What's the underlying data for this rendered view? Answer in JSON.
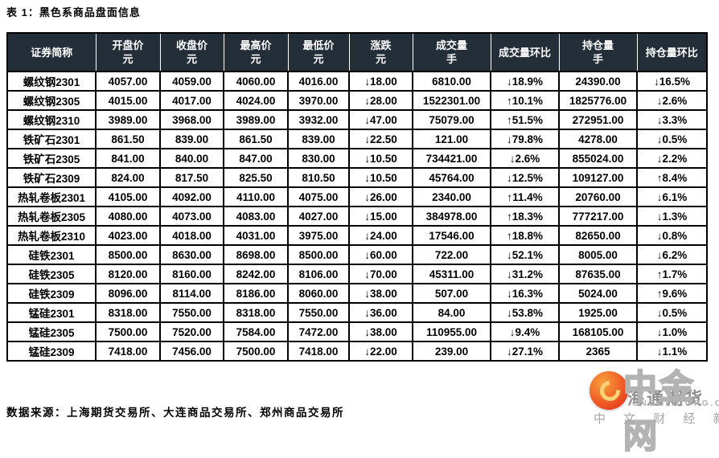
{
  "page": {
    "title": "表 1：黑色系商品盘面信息",
    "source_note": "数据来源：上海期货交易所、大连商品交易所、郑州商品交易所"
  },
  "colors": {
    "header_bg": "#242E38",
    "up_red": "#FE0000",
    "down_green": "#00D400",
    "border_black": "#000000"
  },
  "icons": {
    "up": "↑",
    "down": "↓",
    "logo": "cngold-flame-icon"
  },
  "table": {
    "columns": [
      {
        "label": "证券简称",
        "unit": ""
      },
      {
        "label": "开盘价",
        "unit": "元"
      },
      {
        "label": "收盘价",
        "unit": "元"
      },
      {
        "label": "最高价",
        "unit": "元"
      },
      {
        "label": "最低价",
        "unit": "元"
      },
      {
        "label": "涨跌",
        "unit": "元"
      },
      {
        "label": "成交量",
        "unit": "手"
      },
      {
        "label": "成交量环比",
        "unit": ""
      },
      {
        "label": "持仓量",
        "unit": "手"
      },
      {
        "label": "持仓量环比",
        "unit": ""
      }
    ],
    "rows": [
      {
        "name": "螺纹钢2301",
        "open": "4057.00",
        "close": "4059.00",
        "high": "4060.00",
        "low": "4016.00",
        "change": {
          "dir": "down",
          "value": "18.00"
        },
        "volume": "6810.00",
        "volume_mom": {
          "dir": "down",
          "value": "18.9%"
        },
        "open_interest": "24390.00",
        "oi_mom": {
          "dir": "down",
          "value": "16.5%"
        }
      },
      {
        "name": "螺纹钢2305",
        "open": "4015.00",
        "close": "4017.00",
        "high": "4024.00",
        "low": "3970.00",
        "change": {
          "dir": "down",
          "value": "28.00"
        },
        "volume": "1522301.00",
        "volume_mom": {
          "dir": "up",
          "value": "10.1%"
        },
        "open_interest": "1825776.00",
        "oi_mom": {
          "dir": "down",
          "value": "2.6%"
        }
      },
      {
        "name": "螺纹钢2310",
        "open": "3989.00",
        "close": "3968.00",
        "high": "3989.00",
        "low": "3932.00",
        "change": {
          "dir": "down",
          "value": "47.00"
        },
        "volume": "75079.00",
        "volume_mom": {
          "dir": "up",
          "value": "51.5%"
        },
        "open_interest": "272951.00",
        "oi_mom": {
          "dir": "down",
          "value": "3.3%"
        }
      },
      {
        "name": "铁矿石2301",
        "open": "861.50",
        "close": "839.00",
        "high": "861.50",
        "low": "839.00",
        "change": {
          "dir": "down",
          "value": "22.50"
        },
        "volume": "121.00",
        "volume_mom": {
          "dir": "down",
          "value": "79.8%"
        },
        "open_interest": "4278.00",
        "oi_mom": {
          "dir": "down",
          "value": "0.5%"
        }
      },
      {
        "name": "铁矿石2305",
        "open": "841.00",
        "close": "840.00",
        "high": "847.00",
        "low": "830.00",
        "change": {
          "dir": "down",
          "value": "10.50"
        },
        "volume": "734421.00",
        "volume_mom": {
          "dir": "down",
          "value": "2.6%"
        },
        "open_interest": "855024.00",
        "oi_mom": {
          "dir": "down",
          "value": "2.2%"
        }
      },
      {
        "name": "铁矿石2309",
        "open": "824.00",
        "close": "817.50",
        "high": "825.50",
        "low": "810.50",
        "change": {
          "dir": "down",
          "value": "10.50"
        },
        "volume": "45764.00",
        "volume_mom": {
          "dir": "down",
          "value": "12.5%"
        },
        "open_interest": "109127.00",
        "oi_mom": {
          "dir": "up",
          "value": "8.4%"
        }
      },
      {
        "name": "热轧卷板2301",
        "open": "4105.00",
        "close": "4092.00",
        "high": "4110.00",
        "low": "4075.00",
        "change": {
          "dir": "down",
          "value": "26.00"
        },
        "volume": "2340.00",
        "volume_mom": {
          "dir": "up",
          "value": "11.4%"
        },
        "open_interest": "20760.00",
        "oi_mom": {
          "dir": "down",
          "value": "6.1%"
        }
      },
      {
        "name": "热轧卷板2305",
        "open": "4080.00",
        "close": "4073.00",
        "high": "4083.00",
        "low": "4027.00",
        "change": {
          "dir": "down",
          "value": "15.00"
        },
        "volume": "384978.00",
        "volume_mom": {
          "dir": "up",
          "value": "18.3%"
        },
        "open_interest": "777217.00",
        "oi_mom": {
          "dir": "down",
          "value": "1.3%"
        }
      },
      {
        "name": "热轧卷板2310",
        "open": "4023.00",
        "close": "4018.00",
        "high": "4031.00",
        "low": "3975.00",
        "change": {
          "dir": "down",
          "value": "24.00"
        },
        "volume": "17546.00",
        "volume_mom": {
          "dir": "up",
          "value": "18.8%"
        },
        "open_interest": "82650.00",
        "oi_mom": {
          "dir": "down",
          "value": "0.8%"
        }
      },
      {
        "name": "硅铁2301",
        "open": "8500.00",
        "close": "8630.00",
        "high": "8698.00",
        "low": "8500.00",
        "change": {
          "dir": "down",
          "value": "60.00"
        },
        "volume": "722.00",
        "volume_mom": {
          "dir": "down",
          "value": "52.1%"
        },
        "open_interest": "8005.00",
        "oi_mom": {
          "dir": "down",
          "value": "6.2%"
        }
      },
      {
        "name": "硅铁2305",
        "open": "8120.00",
        "close": "8160.00",
        "high": "8242.00",
        "low": "8106.00",
        "change": {
          "dir": "down",
          "value": "70.00"
        },
        "volume": "45311.00",
        "volume_mom": {
          "dir": "down",
          "value": "31.2%"
        },
        "open_interest": "87635.00",
        "oi_mom": {
          "dir": "up",
          "value": "1.7%"
        }
      },
      {
        "name": "硅铁2309",
        "open": "8096.00",
        "close": "8114.00",
        "high": "8186.00",
        "low": "8060.00",
        "change": {
          "dir": "down",
          "value": "38.00"
        },
        "volume": "507.00",
        "volume_mom": {
          "dir": "down",
          "value": "16.3%"
        },
        "open_interest": "5024.00",
        "oi_mom": {
          "dir": "up",
          "value": "9.6%"
        }
      },
      {
        "name": "锰硅2301",
        "open": "8318.00",
        "close": "7550.00",
        "high": "8318.00",
        "low": "7550.00",
        "change": {
          "dir": "down",
          "value": "36.00"
        },
        "volume": "84.00",
        "volume_mom": {
          "dir": "down",
          "value": "53.8%"
        },
        "open_interest": "1925.00",
        "oi_mom": {
          "dir": "down",
          "value": "0.5%"
        }
      },
      {
        "name": "锰硅2305",
        "open": "7500.00",
        "close": "7520.00",
        "high": "7584.00",
        "low": "7472.00",
        "change": {
          "dir": "down",
          "value": "38.00"
        },
        "volume": "110955.00",
        "volume_mom": {
          "dir": "down",
          "value": "9.4%"
        },
        "open_interest": "168105.00",
        "oi_mom": {
          "dir": "down",
          "value": "1.0%"
        }
      },
      {
        "name": "锰硅2309",
        "open": "7418.00",
        "close": "7456.00",
        "high": "7500.00",
        "low": "7418.00",
        "change": {
          "dir": "down",
          "value": "22.00"
        },
        "volume": "239.00",
        "volume_mom": {
          "dir": "down",
          "value": "27.1%"
        },
        "open_interest": "2365",
        "oi_mom": {
          "dir": "down",
          "value": "1.1%"
        }
      }
    ]
  },
  "watermark": {
    "brand": "中金网",
    "behind_text": "海通期货",
    "domain": "CNGOLD.ORG.CN",
    "tagline": "中 文 财 经 新 媒 体"
  }
}
